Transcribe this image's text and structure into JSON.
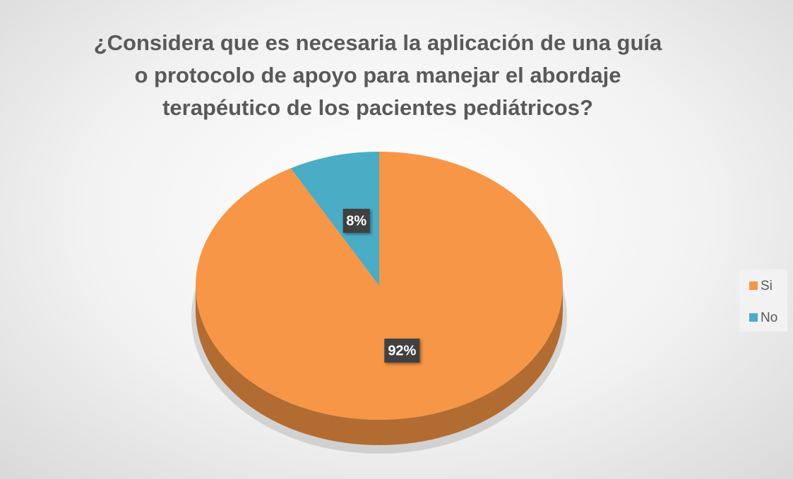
{
  "chart_data": {
    "type": "pie",
    "title": "¿Considera que es necesaria la aplicación de una guía o protocolo de apoyo para manejar el abordaje terapéutico de los pacientes pediátricos?",
    "categories": [
      "Si",
      "No"
    ],
    "values": [
      92,
      8
    ],
    "value_labels": [
      "92%",
      "8%"
    ],
    "colors": [
      "#f79646",
      "#4bacc6"
    ],
    "legend": "right"
  }
}
